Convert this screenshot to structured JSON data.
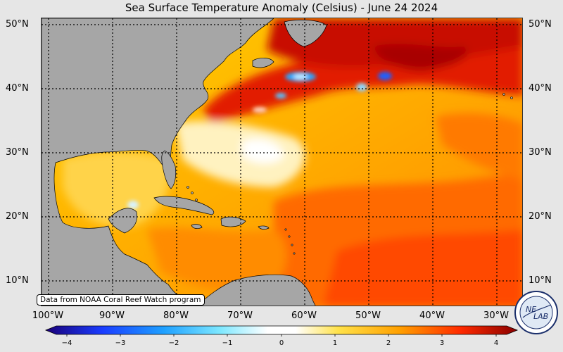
{
  "title": "Sea Surface Temperature Anomaly (Celsius) - June 24 2024",
  "latitudes": [
    "50°N",
    "40°N",
    "30°N",
    "20°N",
    "10°N"
  ],
  "longitudes": [
    "100°W",
    "90°W",
    "80°W",
    "70°W",
    "60°W",
    "50°W",
    "40°W",
    "30°W"
  ],
  "credit": "Data from NOAA Coral Reef Watch program",
  "colorbar": {
    "ticks": [
      "−4",
      "−3",
      "−2",
      "−1",
      "0",
      "1",
      "2",
      "3",
      "4"
    ],
    "min": -4,
    "max": 4
  },
  "logo": {
    "text_top": "NE",
    "text_bottom": "LAB"
  },
  "colors": {
    "land": "#a6a6a6",
    "ocean_base": "#fdb100",
    "page_bg": "#e6e6e6"
  }
}
